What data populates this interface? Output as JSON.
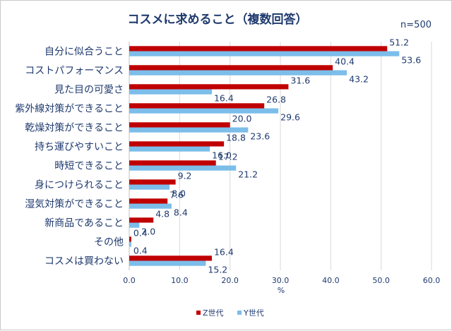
{
  "chart_data": {
    "type": "bar",
    "orientation": "horizontal",
    "title": "コスメに求めること（複数回答）",
    "note": "n=500",
    "xlabel": "%",
    "xlim": [
      0,
      60
    ],
    "xticks": [
      "0.0",
      "10.0",
      "20.0",
      "30.0",
      "40.0",
      "50.0",
      "60.0"
    ],
    "grid": true,
    "legend_position": "bottom",
    "categories": [
      "自分に似合うこと",
      "コストパフォーマンス",
      "見た目の可愛さ",
      "紫外線対策ができること",
      "乾燥対策ができること",
      "持ち運びやすいこと",
      "時短できること",
      "身につけられること",
      "湿気対策ができること",
      "新商品であること",
      "その他",
      "コスメは買わない"
    ],
    "series": [
      {
        "name": "Z世代",
        "color": "#c00000",
        "values": [
          51.2,
          40.4,
          31.6,
          26.8,
          20.0,
          18.8,
          17.2,
          9.2,
          7.6,
          4.8,
          0.4,
          16.4
        ],
        "labels": [
          "51.2",
          "40.4",
          "31.6",
          "26.8",
          "20.0",
          "18.8",
          "17.2",
          "9.2",
          "7.6",
          "4.8",
          "0.4",
          "16.4"
        ]
      },
      {
        "name": "Y世代",
        "color": "#7cbdea",
        "values": [
          53.6,
          43.2,
          16.4,
          29.6,
          23.6,
          16.0,
          21.2,
          8.0,
          8.4,
          2.0,
          0.4,
          15.2
        ],
        "labels": [
          "53.6",
          "43.2",
          "16.4",
          "29.6",
          "23.6",
          "16.0",
          "21.2",
          "8.0",
          "8.4",
          "2.0",
          "0.4",
          "15.2"
        ]
      }
    ]
  }
}
